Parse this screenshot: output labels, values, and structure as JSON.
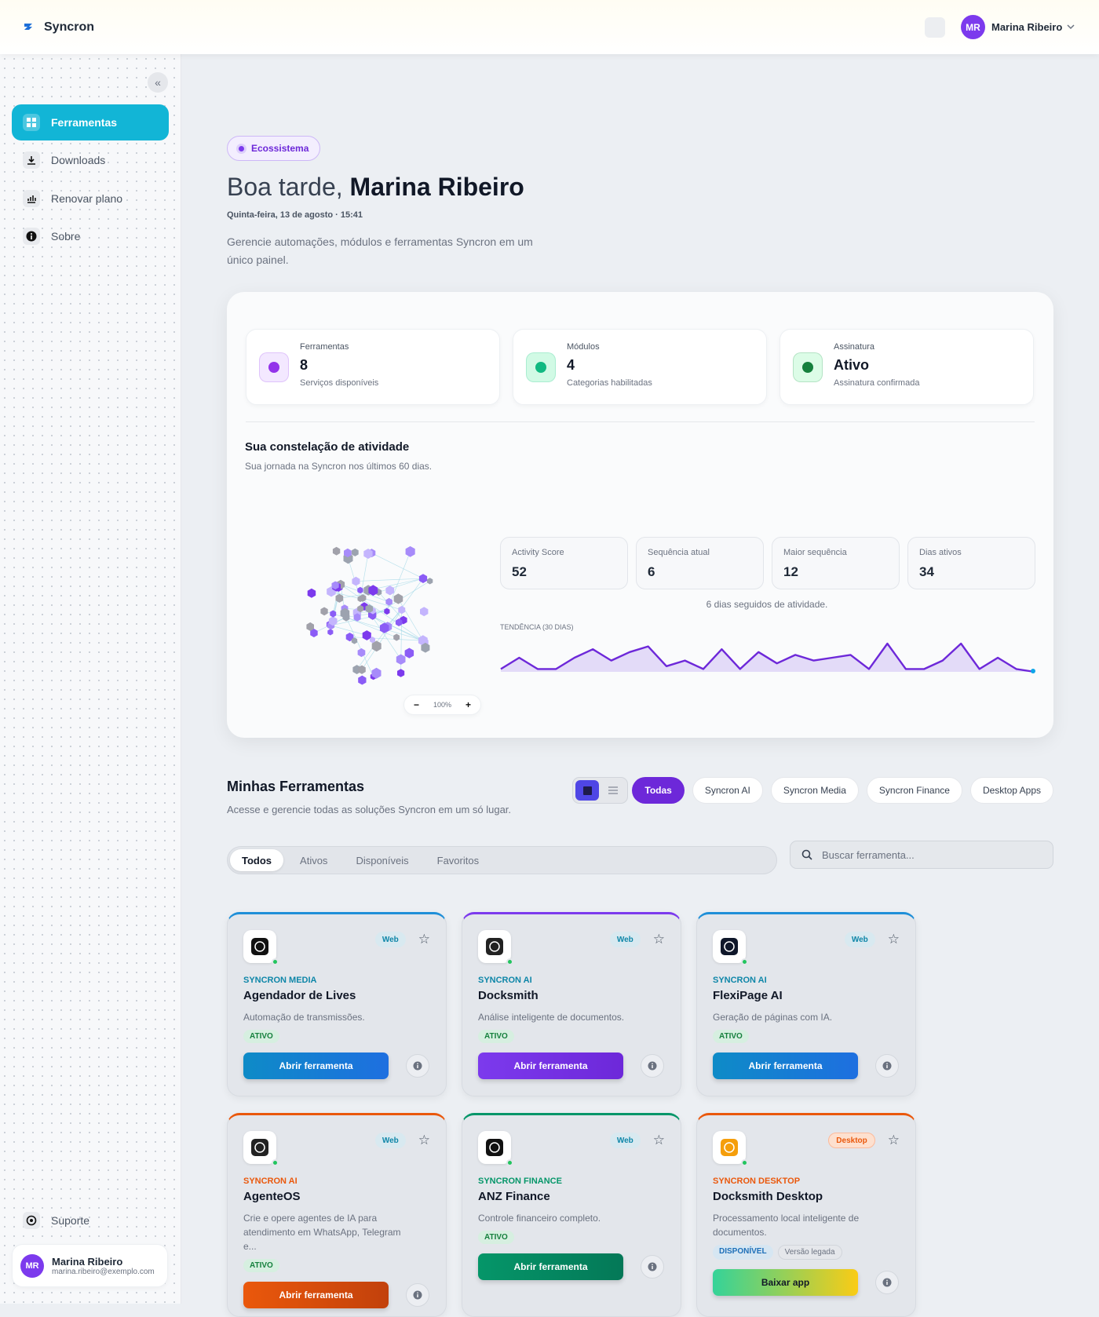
{
  "header": {
    "brand": "Syncron",
    "initials": "MR",
    "user": "Marina Ribeiro"
  },
  "sidebar": {
    "items": [
      "Ferramentas",
      "Downloads",
      "Renovar plano",
      "Sobre"
    ],
    "support": "Suporte",
    "user": {
      "initials": "MR",
      "name": "Marina Ribeiro",
      "email": "marina.ribeiro@exemplo.com"
    }
  },
  "hero": {
    "badge": "Ecossistema",
    "greeting": "Boa tarde,",
    "name": "Marina Ribeiro",
    "date": "Quinta-feira, 13 de agosto · 15:41",
    "description": "Gerencie automações, módulos e ferramentas Syncron em um único painel."
  },
  "stats": [
    {
      "label": "Ferramentas",
      "value": 8,
      "caption": "Serviços disponíveis"
    },
    {
      "label": "Módulos",
      "value": 4,
      "caption": "Categorias habilitadas"
    },
    {
      "label": "Assinatura",
      "value": "Ativo",
      "caption": "Assinatura confirmada"
    }
  ],
  "activity": {
    "title": "Sua constelação de atividade",
    "subtitle": "Sua jornada na Syncron nos últimos 60 dias.",
    "zoom": "100%",
    "metrics": [
      {
        "label": "Activity Score",
        "value": 52
      },
      {
        "label": "Sequência atual",
        "value": 6
      },
      {
        "label": "Maior sequência",
        "value": 12
      },
      {
        "label": "Dias ativos",
        "value": 34
      }
    ],
    "streak_note": "6 dias seguidos de atividade.",
    "trend_label": "TENDÊNCIA (30 DIAS)",
    "trend": [
      1,
      5,
      1,
      1,
      5,
      8,
      4,
      7,
      9,
      2,
      4,
      1,
      8,
      1,
      7,
      3,
      6,
      4,
      5,
      6,
      1,
      10,
      1,
      1,
      4,
      10,
      1,
      5,
      1,
      0
    ]
  },
  "tools": {
    "title": "Minhas Ferramentas",
    "subtitle": "Acesse e gerencie todas as soluções Syncron em um só lugar.",
    "filters": [
      "Todas",
      "Syncron AI",
      "Syncron Media",
      "Syncron Finance",
      "Desktop Apps"
    ],
    "tabs": [
      "Todos",
      "Ativos",
      "Disponíveis",
      "Favoritos"
    ],
    "search_placeholder": "Buscar ferramenta...",
    "cards": [
      {
        "category": "SYNCRON MEDIA",
        "name": "Agendador de Lives",
        "description": "Automação de transmissões.",
        "platform": "Web",
        "status": "ATIVO",
        "button": "Abrir ferramenta"
      },
      {
        "category": "SYNCRON AI",
        "name": "Docksmith",
        "description": "Análise inteligente de documentos.",
        "platform": "Web",
        "status": "ATIVO",
        "button": "Abrir ferramenta"
      },
      {
        "category": "SYNCRON AI",
        "name": "FlexiPage AI",
        "description": "Geração de páginas com IA.",
        "platform": "Web",
        "status": "ATIVO",
        "button": "Abrir ferramenta"
      },
      {
        "category": "SYNCRON AI",
        "name": "AgenteOS",
        "description": "Crie e opere agentes de IA para atendimento em WhatsApp, Telegram e...",
        "platform": "Web",
        "status": "ATIVO",
        "button": "Abrir ferramenta"
      },
      {
        "category": "SYNCRON FINANCE",
        "name": "ANZ Finance",
        "description": "Controle financeiro completo.",
        "platform": "Web",
        "status": "ATIVO",
        "button": "Abrir ferramenta"
      },
      {
        "category": "SYNCRON DESKTOP",
        "name": "Docksmith Desktop",
        "description": "Processamento local inteligente de documentos.",
        "platform": "Desktop",
        "status": "DISPONÍVEL",
        "extra": "Versão legada",
        "button": "Baixar app"
      }
    ]
  }
}
